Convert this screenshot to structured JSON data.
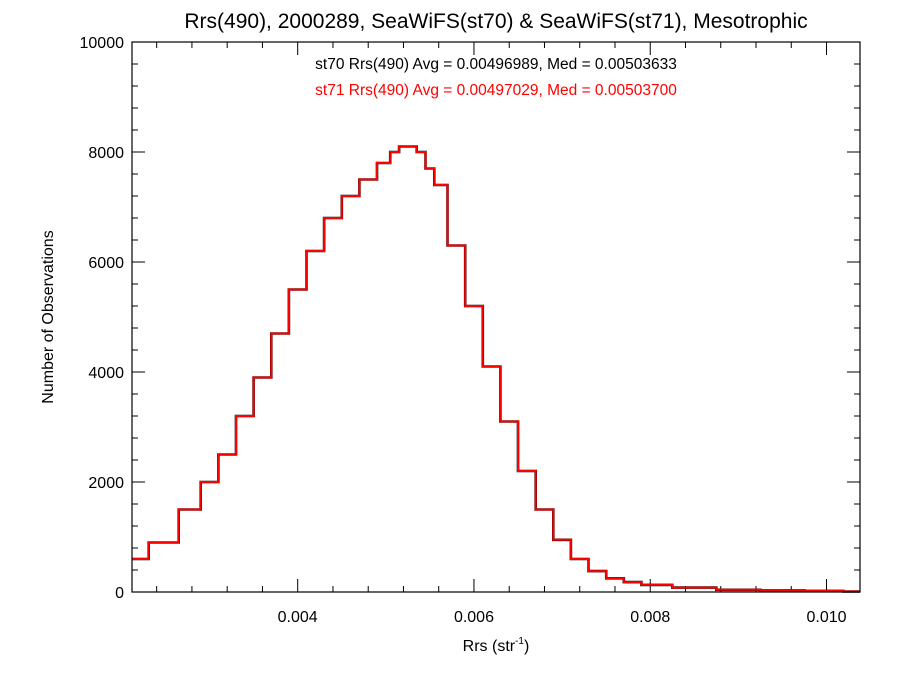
{
  "chart_data": {
    "type": "histogram",
    "title": "Rrs(490), 2000289, SeaWiFS(st70) & SeaWiFS(st71), Mesotrophic",
    "xlabel": "Rrs (str",
    "xlabel_sup": "-1",
    "xlabel_close": ")",
    "ylabel": "Number of Observations",
    "xlim": [
      0.00212,
      0.01038
    ],
    "ylim": [
      0,
      10000
    ],
    "x_ticks": [
      0.004,
      0.006,
      0.008,
      0.01
    ],
    "x_tick_labels": [
      "0.004",
      "0.006",
      "0.008",
      "0.010"
    ],
    "y_ticks": [
      0,
      2000,
      4000,
      6000,
      8000,
      10000
    ],
    "y_tick_labels": [
      "0",
      "2000",
      "4000",
      "6000",
      "8000",
      "10000"
    ],
    "grid": false,
    "annotations": [
      {
        "text": "st70 Rrs(490) Avg = 0.00496989, Med = 0.00503633",
        "color": "#000000"
      },
      {
        "text": "st71 Rrs(490) Avg = 0.00497029, Med = 0.00503700",
        "color": "#ff0000"
      }
    ],
    "series": [
      {
        "color": "#000000",
        "x": [
          0.00212,
          0.0025,
          0.0028,
          0.003,
          0.0032,
          0.0034,
          0.0036,
          0.0038,
          0.004,
          0.0042,
          0.0044,
          0.0046,
          0.0048,
          0.005,
          0.0051,
          0.0052,
          0.0053,
          0.0054,
          0.0055,
          0.0056,
          0.0058,
          0.006,
          0.0062,
          0.0064,
          0.0066,
          0.0068,
          0.007,
          0.0072,
          0.0074,
          0.0076,
          0.0078,
          0.008,
          0.0085,
          0.009,
          0.0095,
          0.01,
          0.01038
        ],
        "y": [
          600,
          900,
          1500,
          2000,
          2500,
          3200,
          3900,
          4700,
          5500,
          6200,
          6800,
          7200,
          7500,
          7800,
          8000,
          8100,
          8100,
          8000,
          7700,
          7400,
          6300,
          5200,
          4100,
          3100,
          2200,
          1500,
          950,
          600,
          380,
          250,
          180,
          130,
          80,
          40,
          30,
          20,
          10
        ]
      },
      {
        "color": "#ff0000",
        "x": [
          0.00212,
          0.0025,
          0.0028,
          0.003,
          0.0032,
          0.0034,
          0.0036,
          0.0038,
          0.004,
          0.0042,
          0.0044,
          0.0046,
          0.0048,
          0.005,
          0.0051,
          0.0052,
          0.0053,
          0.0054,
          0.0055,
          0.0056,
          0.0058,
          0.006,
          0.0062,
          0.0064,
          0.0066,
          0.0068,
          0.007,
          0.0072,
          0.0074,
          0.0076,
          0.0078,
          0.008,
          0.0085,
          0.009,
          0.0095,
          0.01,
          0.01038
        ],
        "y": [
          600,
          900,
          1500,
          2000,
          2500,
          3200,
          3900,
          4700,
          5500,
          6200,
          6800,
          7200,
          7500,
          7800,
          8000,
          8100,
          8100,
          8000,
          7700,
          7400,
          6300,
          5200,
          4100,
          3100,
          2200,
          1500,
          950,
          600,
          380,
          250,
          180,
          130,
          80,
          40,
          30,
          20,
          10
        ]
      }
    ]
  }
}
